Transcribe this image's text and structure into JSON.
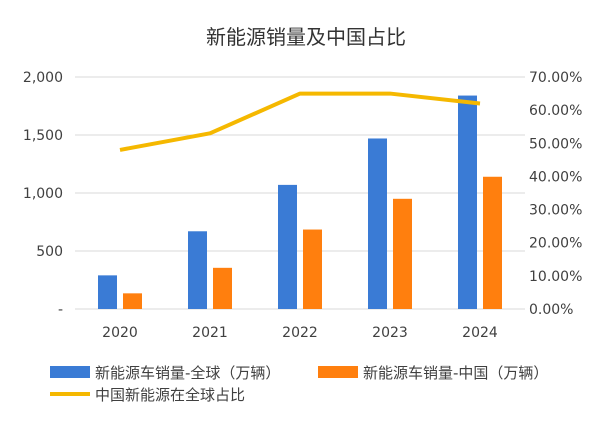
{
  "chart_data": {
    "type": "bar",
    "title": "新能源销量及中国占比",
    "categories": [
      "2020",
      "2021",
      "2022",
      "2023",
      "2024"
    ],
    "series": [
      {
        "name": "新能源车销量-全球（万辆）",
        "kind": "bar",
        "axis": "left",
        "color": "#3a7bd5",
        "values": [
          290,
          670,
          1070,
          1470,
          1840
        ]
      },
      {
        "name": "新能源车销量-中国（万辆）",
        "kind": "bar",
        "axis": "left",
        "color": "#ff7f0e",
        "values": [
          135,
          355,
          685,
          950,
          1140
        ]
      },
      {
        "name": "中国新能源在全球占比",
        "kind": "line",
        "axis": "right",
        "color": "#f5b800",
        "values": [
          48.0,
          53.0,
          65.0,
          65.0,
          62.0
        ]
      }
    ],
    "left_axis": {
      "ylim": [
        0,
        2000
      ],
      "ticks": [
        0,
        500,
        1000,
        1500,
        2000
      ],
      "tick_labels": [
        "-",
        "500",
        "1,000",
        "1,500",
        "2,000"
      ]
    },
    "right_axis": {
      "ylim": [
        0,
        70
      ],
      "ticks": [
        0,
        10,
        20,
        30,
        40,
        50,
        60,
        70
      ],
      "tick_labels": [
        "0.00%",
        "10.00%",
        "20.00%",
        "30.00%",
        "40.00%",
        "50.00%",
        "60.00%",
        "70.00%"
      ]
    },
    "grid": true,
    "legend_position": "bottom"
  }
}
